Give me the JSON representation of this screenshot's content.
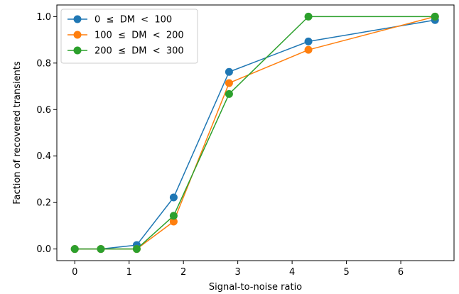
{
  "chart_data": {
    "type": "line",
    "title": "",
    "xlabel": "Signal-to-noise ratio",
    "ylabel": "Faction of recovered transients",
    "xlim": [
      -0.33,
      6.98
    ],
    "ylim": [
      -0.05,
      1.05
    ],
    "xticks": [
      0,
      1,
      2,
      3,
      4,
      5,
      6
    ],
    "xtick_labels": [
      "0",
      "1",
      "2",
      "3",
      "4",
      "5",
      "6"
    ],
    "yticks": [
      0.0,
      0.2,
      0.4,
      0.6,
      0.8,
      1.0
    ],
    "ytick_labels": [
      "0.0",
      "0.2",
      "0.4",
      "0.6",
      "0.8",
      "1.0"
    ],
    "grid": false,
    "legend_position": "top-left",
    "series": [
      {
        "name": "0  ≤  DM  <  100",
        "color": "#1f77b4",
        "x": [
          0.0,
          0.48,
          1.14,
          1.82,
          2.84,
          4.3,
          6.63
        ],
        "y": [
          0.0,
          0.0,
          0.017,
          0.222,
          0.762,
          0.893,
          0.985
        ]
      },
      {
        "name": "100  ≤  DM  <  200",
        "color": "#ff7f0e",
        "x": [
          0.0,
          0.48,
          1.14,
          1.82,
          2.84,
          4.3,
          6.63
        ],
        "y": [
          0.0,
          0.0,
          0.0,
          0.118,
          0.714,
          0.857,
          1.0
        ]
      },
      {
        "name": "200  ≤  DM  <  300",
        "color": "#2ca02c",
        "x": [
          0.0,
          0.48,
          1.14,
          1.82,
          2.84,
          4.3,
          6.63
        ],
        "y": [
          0.0,
          0.0,
          0.0,
          0.143,
          0.667,
          1.0,
          1.0
        ]
      }
    ]
  }
}
